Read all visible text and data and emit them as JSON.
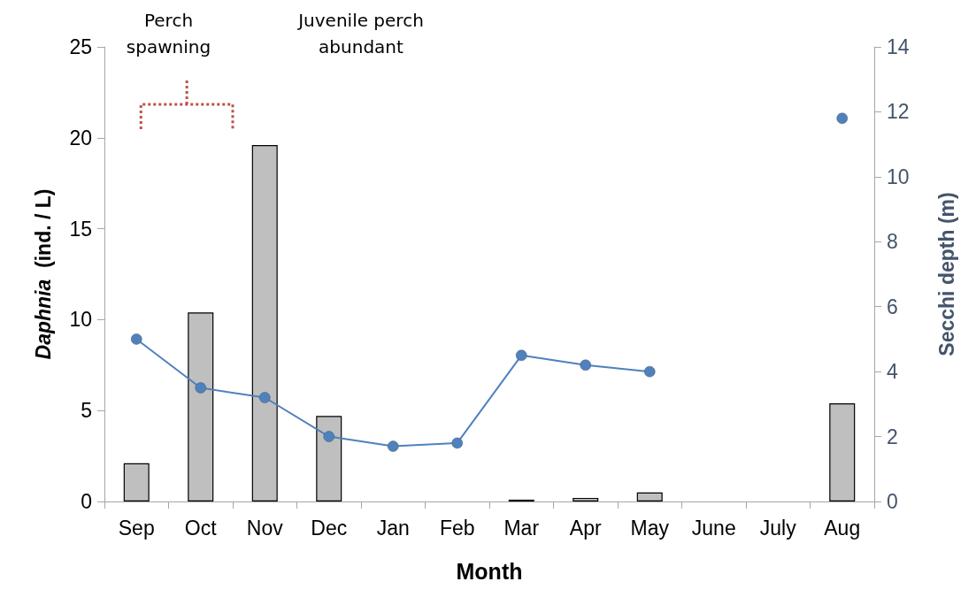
{
  "chart_data": {
    "type": "bar",
    "categories": [
      "Sep",
      "Oct",
      "Nov",
      "Dec",
      "Jan",
      "Feb",
      "Mar",
      "Apr",
      "May",
      "June",
      "July",
      "Aug"
    ],
    "series": [
      {
        "color": "#bfbfbf",
        "values": [
          2.1,
          10.4,
          19.6,
          4.7,
          null,
          null,
          0.1,
          0.2,
          0.5,
          null,
          null,
          5.4
        ]
      },
      {
        "type": "line",
        "axis": "y2",
        "color": "#4f81bd",
        "marker": "circle",
        "values": [
          5.0,
          3.5,
          3.2,
          2.0,
          1.7,
          1.8,
          4.5,
          4.2,
          4.0,
          null,
          null,
          11.8
        ]
      }
    ],
    "xlabel": "Month",
    "ylabel": "Daphnia  (ind. / L)",
    "y2label": "Secchi depth (m)",
    "ylim": [
      0,
      25
    ],
    "yticks": [
      0,
      5,
      10,
      15,
      20,
      25
    ],
    "y2lim": [
      0,
      14
    ],
    "y2ticks": [
      0,
      2,
      4,
      6,
      8,
      10,
      12,
      14
    ],
    "annotations": [
      "Perch\nspawning",
      "Juvenile perch\nabundant"
    ],
    "grid": false
  }
}
